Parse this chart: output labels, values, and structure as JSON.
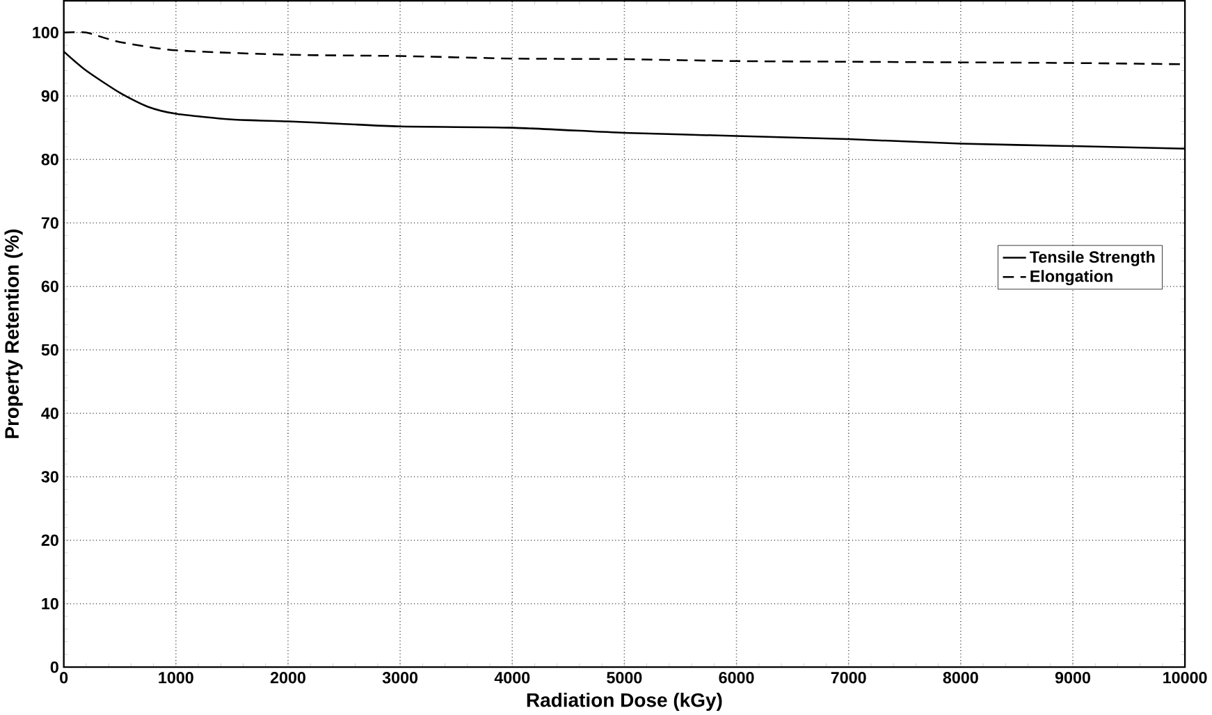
{
  "chart_data": {
    "type": "line",
    "xlabel": "Radiation Dose (kGy)",
    "ylabel": "Property Retention (%)",
    "xlim": [
      0,
      10000
    ],
    "ylim": [
      0,
      105
    ],
    "xticks": [
      0,
      1000,
      2000,
      3000,
      4000,
      5000,
      6000,
      7000,
      8000,
      9000,
      10000
    ],
    "yticks": [
      0,
      10,
      20,
      30,
      40,
      50,
      60,
      70,
      80,
      90,
      100
    ],
    "grid": true,
    "legend": "right",
    "marker": "none",
    "series": [
      {
        "name": "Tensile Strength",
        "color": "#000000",
        "line_style": "solid",
        "x": [
          0,
          200,
          500,
          750,
          1000,
          1500,
          2000,
          2500,
          3000,
          4000,
          5000,
          6000,
          7000,
          8000,
          9000,
          10000
        ],
        "values": [
          97,
          94,
          90.5,
          88.3,
          87.2,
          86.3,
          86,
          85.6,
          85.2,
          85,
          84.2,
          83.7,
          83.2,
          82.5,
          82.1,
          81.7
        ]
      },
      {
        "name": "Elongation",
        "color": "#000000",
        "line_style": "dashed",
        "x": [
          0,
          200,
          500,
          1000,
          2000,
          3000,
          4000,
          5000,
          6000,
          7000,
          8000,
          9000,
          10000
        ],
        "values": [
          100,
          100,
          98.5,
          97.2,
          96.5,
          96.3,
          95.9,
          95.8,
          95.5,
          95.4,
          95.3,
          95.2,
          95.0
        ]
      }
    ]
  }
}
